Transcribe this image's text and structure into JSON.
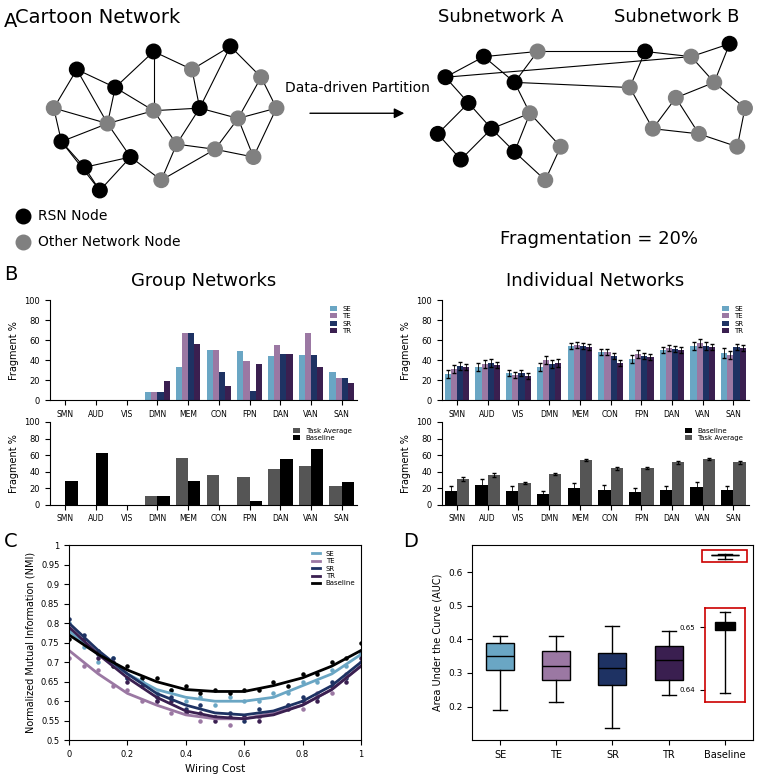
{
  "panel_labels": [
    "A",
    "B",
    "C",
    "D"
  ],
  "diagram": {
    "title": "Cartoon Network",
    "subnetworks": [
      "Subnetwork A",
      "Subnetwork B"
    ],
    "arrow_label": "Data-driven Partition",
    "node_types": [
      {
        "label": "RSN Node",
        "color": "#000000"
      },
      {
        "label": "Other Network Node",
        "color": "#808080"
      }
    ],
    "result": "Fragmentation = 20%"
  },
  "chart_data": [
    {
      "type": "bar",
      "title": "Group Networks",
      "y_label": "Fragment %",
      "categories": [
        "SMN",
        "AUD",
        "VIS",
        "DMN",
        "MEM",
        "CON",
        "FPN",
        "DAN",
        "VAN",
        "SAN"
      ],
      "ylim": [
        0,
        100
      ],
      "yticks": [
        0,
        20,
        40,
        60,
        80,
        100
      ],
      "legend": "upper right",
      "series": [
        {
          "name": "SE",
          "color": "#6aa6c4",
          "values": [
            0,
            0,
            0,
            8,
            33,
            50,
            49,
            44,
            45,
            28
          ]
        },
        {
          "name": "TE",
          "color": "#9b78a3",
          "values": [
            0,
            0,
            0,
            8,
            67,
            50,
            39,
            55,
            67,
            22
          ]
        },
        {
          "name": "SR",
          "color": "#1e3263",
          "values": [
            0,
            0,
            0,
            8,
            67,
            28,
            9,
            46,
            45,
            22
          ]
        },
        {
          "name": "TR",
          "color": "#3a1f50",
          "values": [
            0,
            0,
            0,
            19,
            56,
            14,
            36,
            46,
            33,
            17
          ]
        }
      ]
    },
    {
      "type": "bar",
      "y_label": "Fragment %",
      "categories": [
        "SMN",
        "AUD",
        "VIS",
        "DMN",
        "MEM",
        "CON",
        "FPN",
        "DAN",
        "VAN",
        "SAN"
      ],
      "ylim": [
        0,
        100
      ],
      "yticks": [
        0,
        20,
        40,
        60,
        80,
        100
      ],
      "legend": "upper right",
      "series": [
        {
          "name": "Task Average",
          "color": "#555555",
          "values": [
            0,
            0,
            0,
            10,
            56,
            36,
            33,
            43,
            47,
            22
          ]
        },
        {
          "name": "Baseline",
          "color": "#000000",
          "values": [
            29,
            62,
            0,
            10,
            29,
            0,
            4,
            55,
            67,
            28
          ]
        }
      ]
    },
    {
      "type": "bar",
      "title": "Individual Networks",
      "y_label": "Fragment %",
      "categories": [
        "SMN",
        "AUD",
        "VIS",
        "DMN",
        "MEM",
        "CON",
        "FPN",
        "DAN",
        "VAN",
        "SAN"
      ],
      "ylim": [
        0,
        100
      ],
      "yticks": [
        0,
        20,
        40,
        60,
        80,
        100
      ],
      "legend": "upper right",
      "series": [
        {
          "name": "SE",
          "color": "#6aa6c4",
          "values": [
            26,
            33,
            27,
            33,
            54,
            48,
            41,
            50,
            54,
            47
          ],
          "errors": [
            4,
            4,
            3,
            4,
            3,
            3,
            4,
            3,
            4,
            5
          ]
        },
        {
          "name": "TE",
          "color": "#9b78a3",
          "values": [
            31,
            36,
            25,
            40,
            55,
            48,
            46,
            52,
            57,
            45
          ],
          "errors": [
            4,
            4,
            3,
            4,
            3,
            3,
            4,
            3,
            4,
            4
          ]
        },
        {
          "name": "SR",
          "color": "#1e3263",
          "values": [
            34,
            37,
            27,
            36,
            54,
            44,
            44,
            51,
            54,
            53
          ],
          "errors": [
            4,
            4,
            3,
            4,
            3,
            3,
            3,
            3,
            4,
            3
          ]
        },
        {
          "name": "TR",
          "color": "#3a1f50",
          "values": [
            33,
            35,
            24,
            37,
            53,
            37,
            43,
            50,
            53,
            52
          ],
          "errors": [
            3,
            3,
            3,
            4,
            3,
            3,
            3,
            3,
            3,
            3
          ]
        }
      ]
    },
    {
      "type": "bar",
      "y_label": "Fragment %",
      "categories": [
        "SMN",
        "AUD",
        "VIS",
        "DMN",
        "MEM",
        "CON",
        "FPN",
        "DAN",
        "VAN",
        "SAN"
      ],
      "ylim": [
        0,
        100
      ],
      "yticks": [
        0,
        20,
        40,
        60,
        80,
        100
      ],
      "legend": "upper right",
      "series": [
        {
          "name": "Baseline",
          "color": "#000000",
          "values": [
            17,
            24,
            17,
            13,
            20,
            18,
            15,
            18,
            21,
            18
          ],
          "errors": [
            5,
            7,
            5,
            4,
            6,
            6,
            5,
            5,
            6,
            5
          ]
        },
        {
          "name": "Task Average",
          "color": "#555555",
          "values": [
            31,
            36,
            26,
            37,
            54,
            44,
            44,
            51,
            55,
            51
          ],
          "errors": [
            2,
            2,
            1,
            1,
            1,
            2,
            1,
            2,
            1,
            2
          ]
        }
      ]
    },
    {
      "type": "line",
      "x_label": "Wiring Cost",
      "y_label": "Normalized Mutual Information (NMI)",
      "xlim": [
        0,
        1
      ],
      "ylim": [
        0.5,
        1
      ],
      "xticks": [
        0,
        0.2,
        0.4,
        0.6,
        0.8,
        1
      ],
      "yticks": [
        0.5,
        0.55,
        0.6,
        0.65,
        0.7,
        0.75,
        0.8,
        0.85,
        0.9,
        0.95,
        1
      ],
      "legend": "upper right",
      "x": [
        0,
        0.1,
        0.2,
        0.3,
        0.4,
        0.5,
        0.6,
        0.7,
        0.8,
        0.9,
        1
      ],
      "points_x": [
        0,
        0.05,
        0.1,
        0.15,
        0.2,
        0.25,
        0.3,
        0.35,
        0.4,
        0.45,
        0.5,
        0.55,
        0.6,
        0.65,
        0.7,
        0.75,
        0.8,
        0.85,
        0.9,
        0.95,
        1
      ],
      "series": [
        {
          "name": "SE",
          "color": "#6aa6c4",
          "values": [
            0.78,
            0.72,
            0.67,
            0.63,
            0.61,
            0.6,
            0.6,
            0.61,
            0.64,
            0.67,
            0.72
          ],
          "points": [
            0.8,
            0.74,
            0.7,
            0.71,
            0.66,
            0.66,
            0.62,
            0.63,
            0.6,
            0.61,
            0.59,
            0.61,
            0.6,
            0.6,
            0.62,
            0.62,
            0.65,
            0.65,
            0.68,
            0.69,
            0.73
          ]
        },
        {
          "name": "TE",
          "color": "#9b78a3",
          "values": [
            0.73,
            0.67,
            0.62,
            0.59,
            0.565,
            0.555,
            0.555,
            0.57,
            0.59,
            0.63,
            0.69
          ],
          "points": [
            0.71,
            0.69,
            0.68,
            0.64,
            0.63,
            0.6,
            0.6,
            0.57,
            0.57,
            0.55,
            0.56,
            0.54,
            0.56,
            0.56,
            0.57,
            0.59,
            0.58,
            0.62,
            0.62,
            0.67,
            0.7
          ]
        },
        {
          "name": "SR",
          "color": "#1e3263",
          "values": [
            0.8,
            0.73,
            0.67,
            0.62,
            0.59,
            0.57,
            0.565,
            0.575,
            0.6,
            0.64,
            0.7
          ],
          "points": [
            0.81,
            0.77,
            0.72,
            0.71,
            0.66,
            0.65,
            0.61,
            0.61,
            0.58,
            0.59,
            0.56,
            0.57,
            0.55,
            0.58,
            0.57,
            0.59,
            0.61,
            0.61,
            0.65,
            0.66,
            0.72
          ]
        },
        {
          "name": "TR",
          "color": "#3a1f50",
          "values": [
            0.79,
            0.72,
            0.66,
            0.61,
            0.575,
            0.56,
            0.555,
            0.565,
            0.59,
            0.63,
            0.69
          ],
          "points": [
            0.78,
            0.76,
            0.71,
            0.7,
            0.65,
            0.64,
            0.6,
            0.6,
            0.57,
            0.57,
            0.55,
            0.56,
            0.56,
            0.55,
            0.57,
            0.58,
            0.6,
            0.6,
            0.64,
            0.65,
            0.71
          ]
        },
        {
          "name": "Baseline",
          "color": "#000000",
          "values": [
            0.77,
            0.72,
            0.68,
            0.65,
            0.63,
            0.625,
            0.625,
            0.64,
            0.66,
            0.69,
            0.73
          ],
          "points": [
            0.76,
            0.75,
            0.73,
            0.69,
            0.69,
            0.66,
            0.66,
            0.63,
            0.64,
            0.62,
            0.63,
            0.62,
            0.63,
            0.63,
            0.65,
            0.64,
            0.67,
            0.67,
            0.7,
            0.71,
            0.75
          ]
        }
      ]
    },
    {
      "type": "box",
      "y_label": "Area Under the Curve (AUC)",
      "categories": [
        "SE",
        "TE",
        "SR",
        "TR",
        "Baseline"
      ],
      "colors": [
        "#6aa6c4",
        "#9b78a3",
        "#1e3263",
        "#3a1f50",
        "#000000"
      ],
      "ylim": [
        0.1,
        0.68
      ],
      "yticks": [
        0.2,
        0.3,
        0.4,
        0.5,
        0.6
      ],
      "boxes": [
        {
          "min": 0.19,
          "q1": 0.31,
          "median": 0.35,
          "q3": 0.39,
          "max": 0.41
        },
        {
          "min": 0.215,
          "q1": 0.28,
          "median": 0.32,
          "q3": 0.365,
          "max": 0.41
        },
        {
          "min": 0.135,
          "q1": 0.265,
          "median": 0.315,
          "q3": 0.36,
          "max": 0.44
        },
        {
          "min": 0.235,
          "q1": 0.28,
          "median": 0.34,
          "q3": 0.38,
          "max": 0.425
        },
        {
          "min": 0.6395,
          "q1": 0.6495,
          "median": 0.6502,
          "q3": 0.6508,
          "max": 0.6525
        }
      ],
      "inset": {
        "category": "Baseline",
        "ylim": [
          0.638,
          0.653
        ],
        "yticks": [
          0.64,
          0.65
        ]
      }
    }
  ]
}
